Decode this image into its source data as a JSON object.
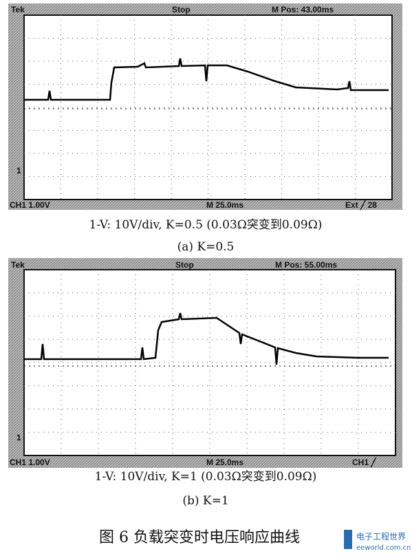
{
  "panels": [
    {
      "header": {
        "brand": "Tek",
        "state": "Stop",
        "position": "M Pos: 43.00ms"
      },
      "footer": {
        "channel": "CH1  1.00V",
        "timebase": "M 25.0ms",
        "trigger": "Ext ╱ 28"
      },
      "marker": "1",
      "caption": "1-V: 10V/div, K=0.5 (0.03Ω突变到0.09Ω)",
      "label": "(a) K=0.5"
    },
    {
      "header": {
        "brand": "Tek",
        "state": "Stop",
        "position": "M Pos: 55.00ms"
      },
      "footer": {
        "channel": "CH1  1.00V",
        "timebase": "M 25.0ms",
        "trigger": "CH1 ╱"
      },
      "marker": "1",
      "caption": "1-V: 10V/div, K=1 (0.03Ω突变到0.09Ω)",
      "label": "(b) K=1"
    }
  ],
  "figure_title": "图 6    负载突变时电压响应曲线",
  "watermark": {
    "name": "电子工程世界",
    "site": "eeworld.com.cn"
  }
}
